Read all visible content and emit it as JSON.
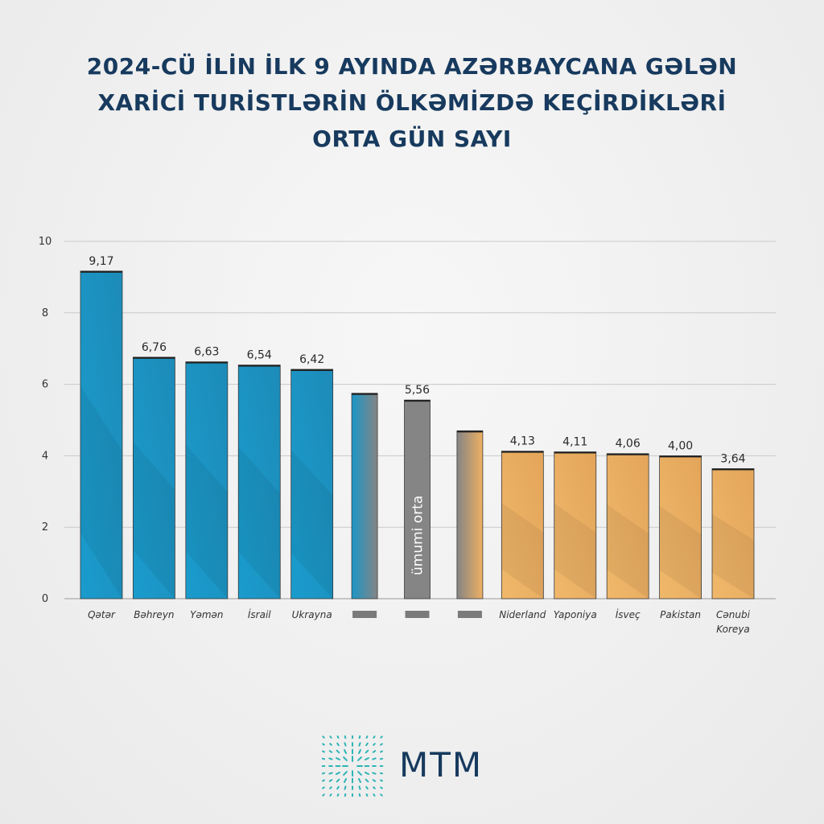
{
  "title_lines": [
    "2024-CÜ İLİN İLK 9 AYINDA AZƏRBAYCANA GƏLƏN",
    "XARİCİ TURİSTLƏRİN ÖLKƏMİZDƏ KEÇİRDİKLƏRİ",
    "ORTA GÜN SAYI"
  ],
  "brand": "MTM",
  "average_label": "ümumi orta",
  "colors": {
    "high": "#1b96c6",
    "low": "#eeb062",
    "avg": "#858585",
    "title": "#173a5e"
  },
  "chart_data": {
    "type": "bar",
    "ylim": [
      0,
      10
    ],
    "yticks": [
      0,
      2,
      4,
      6,
      8,
      10
    ],
    "grid": true,
    "categories": [
      "Qətər",
      "Bəhreyn",
      "Yəmən",
      "İsrail",
      "Ukrayna",
      "",
      "",
      "",
      "Niderland",
      "Yaponiya",
      "İsveç",
      "Pakistan",
      "Cənubi Koreya"
    ],
    "values": [
      9.17,
      6.76,
      6.63,
      6.54,
      6.42,
      5.75,
      5.56,
      4.7,
      4.13,
      4.11,
      4.06,
      4.0,
      3.64
    ],
    "value_labels": [
      "9,17",
      "6,76",
      "6,63",
      "6,54",
      "6,42",
      "",
      "5,56",
      "",
      "4,13",
      "4,11",
      "4,06",
      "4,00",
      "3,64"
    ],
    "groups": [
      "high",
      "high",
      "high",
      "high",
      "high",
      "blend-blue",
      "avg",
      "blend-orange",
      "low",
      "low",
      "low",
      "low",
      "low"
    ]
  }
}
